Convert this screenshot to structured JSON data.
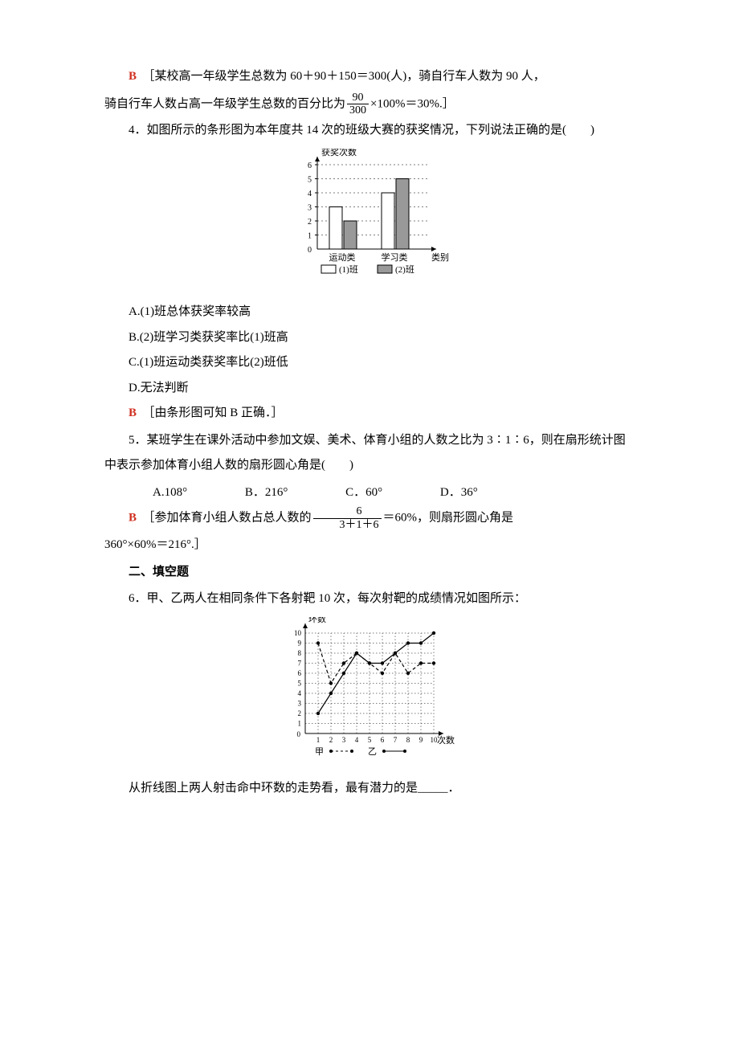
{
  "ans3": {
    "letter": "B",
    "text_a": "［某校高一年级学生总数为 60＋90＋150＝300(人)，骑自行车人数为 90 人，",
    "text_b_prefix": "骑自行车人数占高一年级学生总数的百分比为",
    "frac_num": "90",
    "frac_den": "300",
    "text_b_suffix": "×100%＝30%.］"
  },
  "q4": {
    "prompt": "4．如图所示的条形图为本年度共 14 次的班级大赛的获奖情况，下列说法正确的是(　　)",
    "chart": {
      "y_label": "获奖次数",
      "x_label": "类别",
      "y_ticks": [
        0,
        1,
        2,
        3,
        4,
        5,
        6
      ],
      "y_max": 6,
      "categories": [
        "运动类",
        "学习类"
      ],
      "series": [
        {
          "name": "(1)班",
          "fill": "#ffffff",
          "stroke": "#000"
        },
        {
          "name": "(2)班",
          "fill": "#999999",
          "stroke": "#000"
        }
      ],
      "values": {
        "运动类": {
          "1班": 3,
          "2班": 2
        },
        "学习类": {
          "1班": 4,
          "2班": 5
        }
      },
      "legend1": "(1)班",
      "legend2": "(2)班"
    },
    "opts": [
      "A.(1)班总体获奖率较高",
      "B.(2)班学习类获奖率比(1)班高",
      "C.(1)班运动类获奖率比(2)班低",
      "D.无法判断"
    ],
    "ans_letter": "B",
    "ans_text": "［由条形图可知 B 正确．］"
  },
  "q5": {
    "prompt": "5．某班学生在课外活动中参加文娱、美术、体育小组的人数之比为 3∶1∶6，则在扇形统计图中表示参加体育小组人数的扇形圆心角是(　　)",
    "opts": {
      "A": "A.108°",
      "B": "B．216°",
      "C": "C．60°",
      "D": "D．36°"
    },
    "ans_letter": "B",
    "ans_prefix": "［参加体育小组人数占总人数的",
    "frac_num": "6",
    "frac_den": "3＋1＋6",
    "ans_mid": "＝60%，则扇形圆心角是",
    "ans_line2": "360°×60%＝216°.］"
  },
  "section2": "二、填空题",
  "q6": {
    "prompt": "6．甲、乙两人在相同条件下各射靶 10 次，每次射靶的成绩情况如图所示：",
    "chart": {
      "y_label": "环数",
      "x_label": "次数",
      "x_ticks": [
        1,
        2,
        3,
        4,
        5,
        6,
        7,
        8,
        9,
        10
      ],
      "y_ticks": [
        0,
        1,
        2,
        3,
        4,
        5,
        6,
        7,
        8,
        9,
        10
      ],
      "y_max": 10,
      "series_jia": {
        "name": "甲",
        "data": [
          9,
          5,
          7,
          8,
          7,
          6,
          8,
          6,
          7,
          7
        ],
        "marker": "dot-dash"
      },
      "series_yi": {
        "name": "乙",
        "data": [
          2,
          4,
          6,
          8,
          7,
          7,
          8,
          9,
          9,
          10
        ],
        "marker": "solid"
      },
      "leg_jia": "甲",
      "leg_yi": "乙"
    },
    "after": "从折线图上两人射击命中环数的走势看，最有潜力的是_____．"
  }
}
